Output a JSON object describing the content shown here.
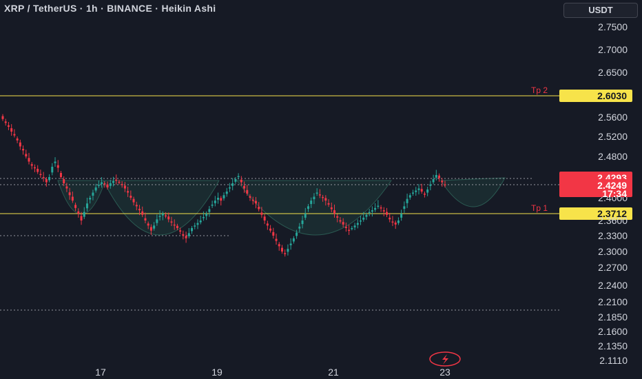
{
  "header": {
    "title": "XRP / TetherUS · 1h · BINANCE · Heikin Ashi",
    "currency": "USDT"
  },
  "colors": {
    "background": "#161a25",
    "up": "#26a69a",
    "down": "#f23645",
    "level_line": "#f7e34a",
    "tp_label": "#f23645",
    "pattern_fill": "#1f3b3a",
    "pattern_stroke": "#2b5a52",
    "dotted": "#9598a1"
  },
  "chart_data": {
    "type": "candlestick",
    "y_axis": {
      "ticks": [
        "2.7500",
        "2.7000",
        "2.6500",
        "2.5600",
        "2.5200",
        "2.4800",
        "2.4000",
        "2.3600",
        "2.3300",
        "2.3000",
        "2.2700",
        "2.2400",
        "2.2100",
        "2.1850",
        "2.1600",
        "2.1350",
        "2.1110"
      ]
    },
    "x_axis": {
      "ticks": [
        "17",
        "19",
        "21",
        "23"
      ]
    },
    "levels": [
      {
        "name": "Tp 2",
        "value": "2.6030",
        "color": "#f7e34a"
      },
      {
        "name": "Tp 1",
        "value": "2.3712",
        "color": "#f7e34a"
      }
    ],
    "current_price": {
      "high_label": "2.4293",
      "price": "2.4249",
      "countdown": "17:34"
    },
    "dotted_levels": [
      2.4293,
      2.4249,
      2.332,
      2.195
    ],
    "candles_close_approx": [
      2.556,
      2.548,
      2.54,
      2.53,
      2.522,
      2.512,
      2.5,
      2.492,
      2.48,
      2.47,
      2.462,
      2.458,
      2.45,
      2.444,
      2.438,
      2.43,
      2.44,
      2.46,
      2.47,
      2.458,
      2.44,
      2.428,
      2.418,
      2.405,
      2.395,
      2.382,
      2.372,
      2.36,
      2.375,
      2.39,
      2.4,
      2.41,
      2.42,
      2.425,
      2.43,
      2.428,
      2.42,
      2.428,
      2.432,
      2.434,
      2.43,
      2.425,
      2.418,
      2.41,
      2.4,
      2.392,
      2.385,
      2.378,
      2.37,
      2.36,
      2.35,
      2.34,
      2.35,
      2.362,
      2.368,
      2.372,
      2.368,
      2.362,
      2.356,
      2.35,
      2.345,
      2.338,
      2.33,
      2.325,
      2.335,
      2.345,
      2.35,
      2.355,
      2.36,
      2.366,
      2.372,
      2.38,
      2.388,
      2.395,
      2.4,
      2.395,
      2.405,
      2.412,
      2.42,
      2.428,
      2.436,
      2.442,
      2.43,
      2.418,
      2.408,
      2.4,
      2.395,
      2.39,
      2.38,
      2.37,
      2.36,
      2.35,
      2.34,
      2.33,
      2.32,
      2.31,
      2.3,
      2.296,
      2.305,
      2.315,
      2.325,
      2.336,
      2.348,
      2.36,
      2.372,
      2.385,
      2.395,
      2.402,
      2.41,
      2.405,
      2.4,
      2.395,
      2.388,
      2.38,
      2.372,
      2.365,
      2.358,
      2.352,
      2.345,
      2.34,
      2.345,
      2.35,
      2.355,
      2.36,
      2.365,
      2.37,
      2.375,
      2.378,
      2.382,
      2.386,
      2.382,
      2.376,
      2.37,
      2.362,
      2.356,
      2.352,
      2.36,
      2.372,
      2.385,
      2.398,
      2.405,
      2.41,
      2.414,
      2.418,
      2.412,
      2.406,
      2.416,
      2.426,
      2.436,
      2.444,
      2.438,
      2.43,
      2.424
    ]
  }
}
